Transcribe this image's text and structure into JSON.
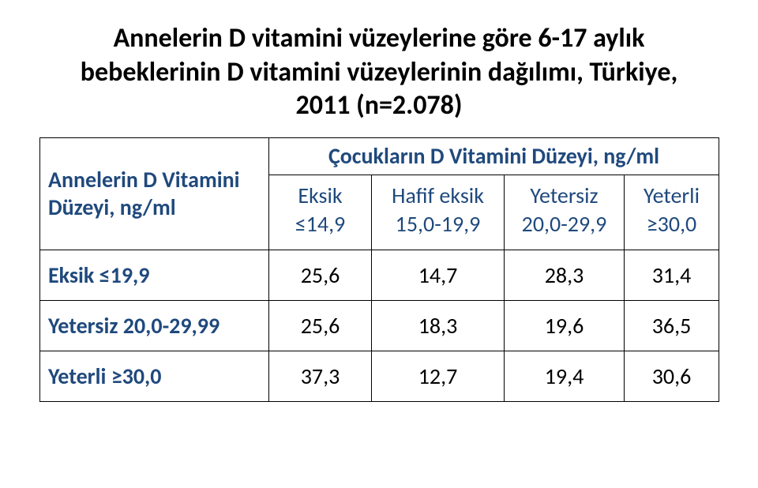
{
  "title": "Annelerin D vitamini vüzeylerine göre 6-17 aylık\nbebeklerinin D vitamini vüzeylerinin dağılımı, Türkiye,\n2011 (n=2.078)",
  "table": {
    "header_left": "Annelerin D\nVitamini Düzeyi,\nng/ml",
    "header_top": "Çocukların D Vitamini Düzeyi, ng/ml",
    "subheaders": [
      "Eksik\n≤14,9",
      "Hafif eksik\n15,0-19,9",
      "Yetersiz\n20,0-29,9",
      "Yeterli\n≥30,0"
    ],
    "rows": [
      {
        "label": "Eksik ≤19,9",
        "cells": [
          "25,6",
          "14,7",
          "28,3",
          "31,4"
        ]
      },
      {
        "label": "Yetersiz 20,0-29,99",
        "cells": [
          "25,6",
          "18,3",
          "19,6",
          "36,5"
        ]
      },
      {
        "label": "Yeterli ≥30,0",
        "cells": [
          "37,3",
          "12,7",
          "19,4",
          "30,6"
        ]
      }
    ]
  },
  "colors": {
    "header_text": "#1f497d",
    "body_text": "#000000",
    "border": "#000000",
    "background": "#ffffff"
  }
}
